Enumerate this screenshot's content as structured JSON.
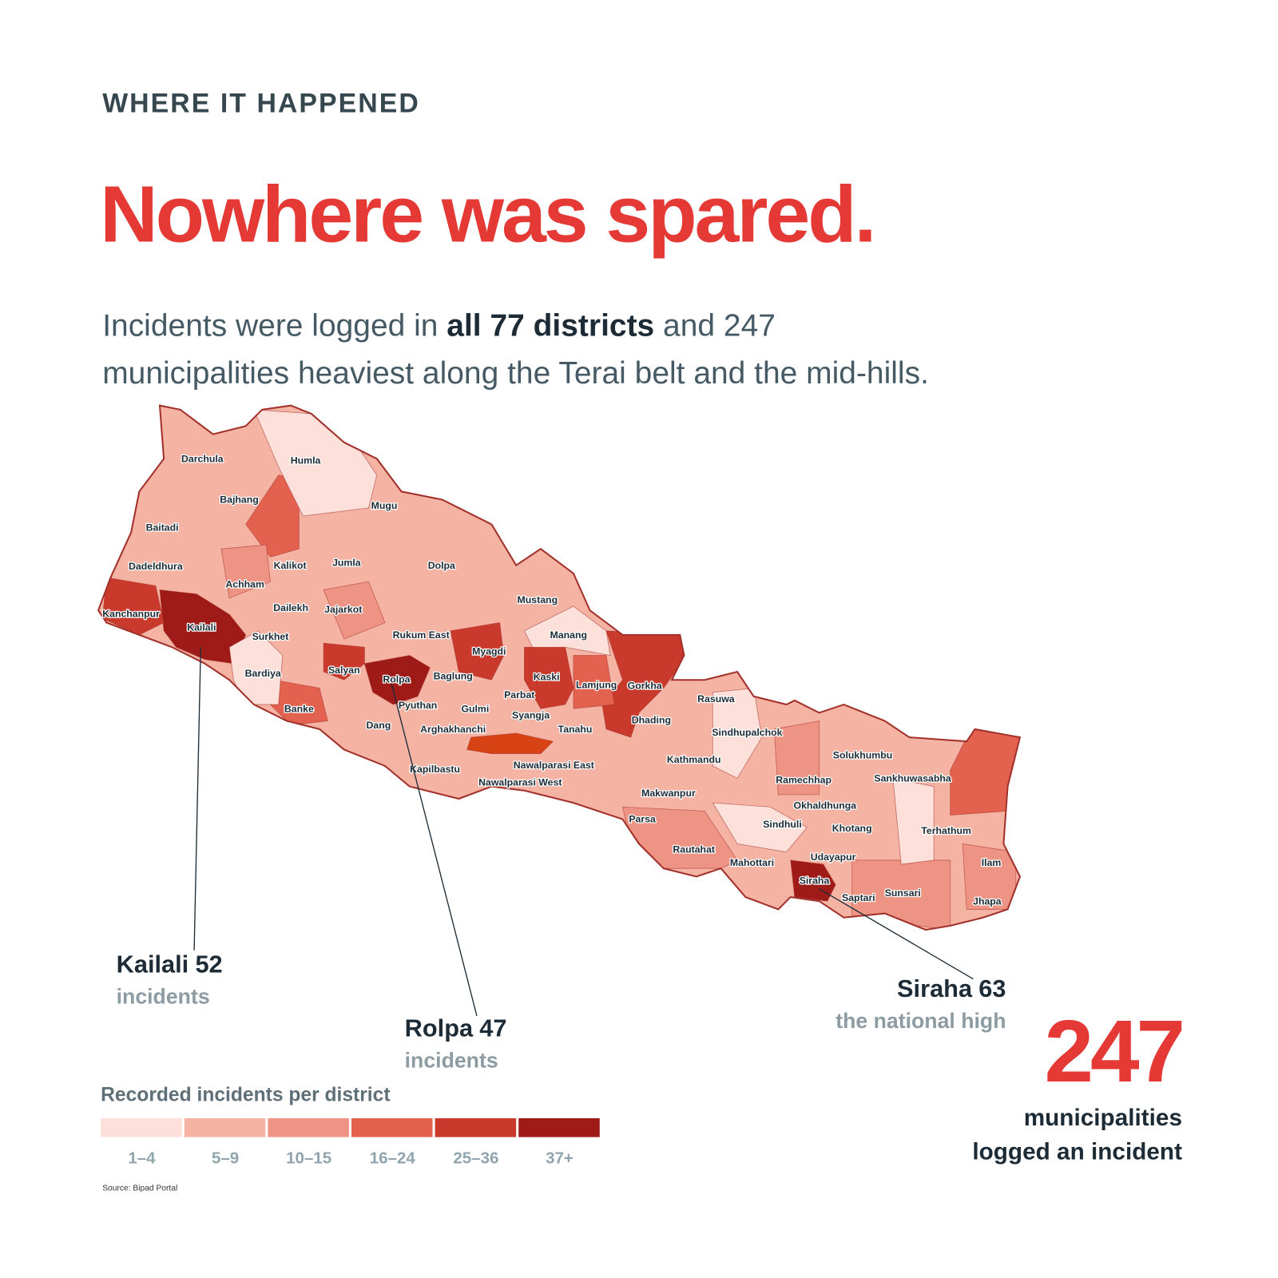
{
  "header": {
    "kicker": "WHERE IT HAPPENED",
    "headline": "Nowhere was spared.",
    "subtitle": {
      "line1_start": "Incidents were logged in",
      "line1_bold": "all 77 districts",
      "line1_end": "and 247",
      "line2": "municipalities heaviest along the Terai belt and the mid-hills."
    }
  },
  "map": {
    "districts": [
      "Darchula",
      "Humla",
      "Bajhang",
      "Mugu",
      "Baitadi",
      "Dadeldhura",
      "Kalikot",
      "Jumla",
      "Dolpa",
      "Achham",
      "Mustang",
      "Kanchanpur",
      "Dailekh",
      "Jajarkot",
      "Kailali",
      "Rukum East",
      "Manang",
      "Surkhet",
      "Myagdi",
      "Bardiya",
      "Salyan",
      "Rolpa",
      "Baglung",
      "Kaski",
      "Lamjung",
      "Gorkha",
      "Parbat",
      "Rasuwa",
      "Banke",
      "Pyuthan",
      "Gulmi",
      "Syangja",
      "Dhading",
      "Dang",
      "Arghakhanchi",
      "Tanahu",
      "Sindhupalchok",
      "Solukhumbu",
      "Kathmandu",
      "Kapilbastu",
      "Nawalparasi East",
      "Sankhuwasabha",
      "Ramechhap",
      "Nawalparasi West",
      "Makwanpur",
      "Okhaldhunga",
      "Parsa",
      "Sindhuli",
      "Khotang",
      "Terhathum",
      "Rautahat",
      "Udayapur",
      "Ilam",
      "Mahottari",
      "Siraha",
      "Sunsari",
      "Saptari",
      "Jhapa"
    ],
    "highlight_color": "#d84315",
    "border_color": "#a3312b"
  },
  "callouts": [
    {
      "district": "Kailali",
      "count": 52,
      "note": "incidents"
    },
    {
      "district": "Rolpa",
      "count": 47,
      "note": "incidents"
    },
    {
      "district": "Siraha",
      "count": 63,
      "note": "the national high"
    }
  ],
  "legend": {
    "title": "Recorded incidents per district",
    "bins": [
      {
        "label": "1–4",
        "color": "#fde0da"
      },
      {
        "label": "5–9",
        "color": "#f5b3a3"
      },
      {
        "label": "10–15",
        "color": "#ee9484"
      },
      {
        "label": "16–24",
        "color": "#e2624f"
      },
      {
        "label": "25–36",
        "color": "#c9392c"
      },
      {
        "label": "37+",
        "color": "#9e1b17"
      }
    ]
  },
  "stat": {
    "value": 247,
    "line1": "municipalities",
    "line2": "logged an incident"
  },
  "source": "Source: Bipad Portal"
}
